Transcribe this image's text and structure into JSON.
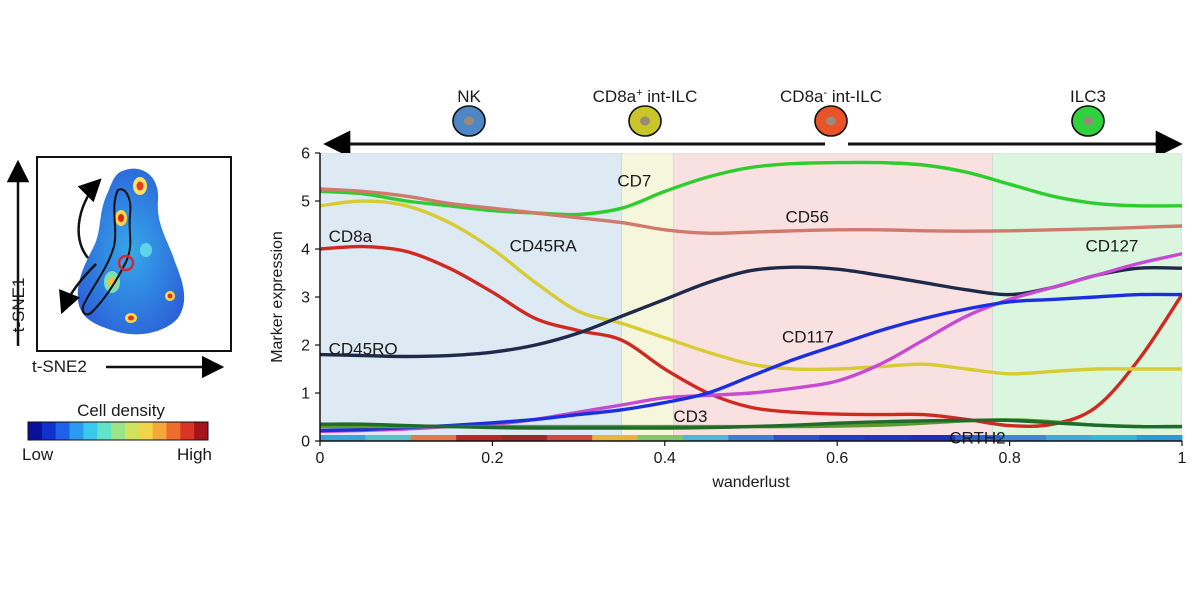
{
  "inset": {
    "x_axis_label": "t-SNE2",
    "y_axis_label": "t-SNE1",
    "colorbar_title": "Cell density",
    "colorbar_low": "Low",
    "colorbar_high": "High",
    "colorbar_colors": [
      "#0a0f9e",
      "#1030d0",
      "#1c62ea",
      "#2a9bf0",
      "#39c9ee",
      "#62e2c8",
      "#9be48a",
      "#cfe35c",
      "#f0d548",
      "#f5a83a",
      "#ef6d2c",
      "#d93424",
      "#a5141c"
    ]
  },
  "stages": [
    {
      "name": "NK",
      "color": "#4f86c6"
    },
    {
      "name": "CD8a",
      "sup": "+",
      "suffix": " int-ILC",
      "color": "#c9c62a"
    },
    {
      "name": "CD8a",
      "sup": "-",
      "suffix": " int-ILC",
      "color": "#ea5328"
    },
    {
      "name": "ILC3",
      "color": "#2fd23c"
    }
  ],
  "chart_data": {
    "type": "line",
    "xlabel": "wanderlust",
    "ylabel": "Marker expression",
    "xlim": [
      0,
      1
    ],
    "ylim": [
      0,
      6
    ],
    "xticks": [
      "0",
      "0.2",
      "0.4",
      "0.6",
      "0.8",
      "1"
    ],
    "yticks": [
      "0",
      "1",
      "2",
      "3",
      "4",
      "5",
      "6"
    ],
    "regions": [
      {
        "from": 0,
        "to": 0.35,
        "color": "#dde9f3"
      },
      {
        "from": 0.35,
        "to": 0.41,
        "color": "#f6f6dc"
      },
      {
        "from": 0.41,
        "to": 0.78,
        "color": "#fae1e1"
      },
      {
        "from": 0.78,
        "to": 1.0,
        "color": "#dbf6df"
      }
    ],
    "x": [
      0,
      0.05,
      0.1,
      0.15,
      0.2,
      0.25,
      0.3,
      0.35,
      0.4,
      0.45,
      0.5,
      0.55,
      0.6,
      0.65,
      0.7,
      0.75,
      0.8,
      0.85,
      0.9,
      0.95,
      1.0
    ],
    "series": [
      {
        "name": "CD7",
        "color": "#2ecc2e",
        "values": [
          5.2,
          5.15,
          5.0,
          4.9,
          4.8,
          4.75,
          4.72,
          4.85,
          5.2,
          5.5,
          5.7,
          5.78,
          5.8,
          5.8,
          5.75,
          5.6,
          5.35,
          5.1,
          4.95,
          4.9,
          4.9
        ]
      },
      {
        "name": "CD56",
        "color": "#d07a6e",
        "values": [
          5.25,
          5.2,
          5.1,
          4.95,
          4.85,
          4.75,
          4.65,
          4.55,
          4.4,
          4.33,
          4.35,
          4.38,
          4.4,
          4.4,
          4.38,
          4.37,
          4.38,
          4.4,
          4.42,
          4.45,
          4.48
        ]
      },
      {
        "name": "CD8a",
        "color": "#cf2a22",
        "values": [
          4.0,
          4.05,
          3.95,
          3.6,
          3.1,
          2.55,
          2.3,
          2.1,
          1.5,
          1.0,
          0.7,
          0.6,
          0.56,
          0.55,
          0.55,
          0.45,
          0.32,
          0.35,
          0.7,
          1.7,
          3.05
        ]
      },
      {
        "name": "CD45RA",
        "color": "#d8cc34",
        "values": [
          4.9,
          5.0,
          4.9,
          4.55,
          4.0,
          3.3,
          2.7,
          2.45,
          2.15,
          1.85,
          1.6,
          1.5,
          1.5,
          1.55,
          1.6,
          1.5,
          1.4,
          1.45,
          1.5,
          1.5,
          1.5
        ]
      },
      {
        "name": "CD45RO",
        "color": "#1f2a4a",
        "values": [
          1.8,
          1.78,
          1.76,
          1.78,
          1.85,
          2.0,
          2.25,
          2.6,
          2.95,
          3.3,
          3.55,
          3.62,
          3.58,
          3.45,
          3.3,
          3.15,
          3.05,
          3.2,
          3.45,
          3.6,
          3.6
        ]
      },
      {
        "name": "CD127",
        "color": "#c74ad4",
        "values": [
          0.2,
          0.22,
          0.25,
          0.3,
          0.35,
          0.45,
          0.6,
          0.75,
          0.9,
          0.95,
          1.0,
          1.1,
          1.25,
          1.6,
          2.1,
          2.6,
          2.95,
          3.2,
          3.45,
          3.7,
          3.9
        ]
      },
      {
        "name": "CD117",
        "color": "#1b2fe0",
        "values": [
          0.22,
          0.24,
          0.28,
          0.32,
          0.38,
          0.45,
          0.55,
          0.65,
          0.8,
          1.0,
          1.35,
          1.7,
          2.0,
          2.3,
          2.55,
          2.75,
          2.9,
          2.95,
          3.0,
          3.05,
          3.05
        ]
      },
      {
        "name": "CD3",
        "color": "#5a9b2d",
        "values": [
          0.3,
          0.3,
          0.3,
          0.3,
          0.3,
          0.3,
          0.3,
          0.3,
          0.3,
          0.3,
          0.3,
          0.3,
          0.31,
          0.33,
          0.37,
          0.42,
          0.44,
          0.4,
          0.33,
          0.3,
          0.3
        ]
      },
      {
        "name": "CRTH2",
        "color": "#1e6b2c",
        "values": [
          0.35,
          0.35,
          0.32,
          0.3,
          0.28,
          0.27,
          0.27,
          0.27,
          0.27,
          0.28,
          0.3,
          0.33,
          0.37,
          0.4,
          0.42,
          0.43,
          0.43,
          0.38,
          0.33,
          0.3,
          0.3
        ]
      }
    ],
    "annotations": [
      {
        "text": "CD7",
        "x": 0.345,
        "y": 5.3
      },
      {
        "text": "CD56",
        "x": 0.54,
        "y": 4.55
      },
      {
        "text": "CD8a",
        "x": 0.01,
        "y": 4.15
      },
      {
        "text": "CD45RA",
        "x": 0.22,
        "y": 3.95
      },
      {
        "text": "CD127",
        "x": 0.888,
        "y": 3.95
      },
      {
        "text": "CD117",
        "x": 0.536,
        "y": 2.05
      },
      {
        "text": "CD45RO",
        "x": 0.01,
        "y": 1.8
      },
      {
        "text": "CD3",
        "x": 0.41,
        "y": 0.4
      },
      {
        "text": "CRTH2",
        "x": 0.73,
        "y": -0.05
      }
    ]
  }
}
